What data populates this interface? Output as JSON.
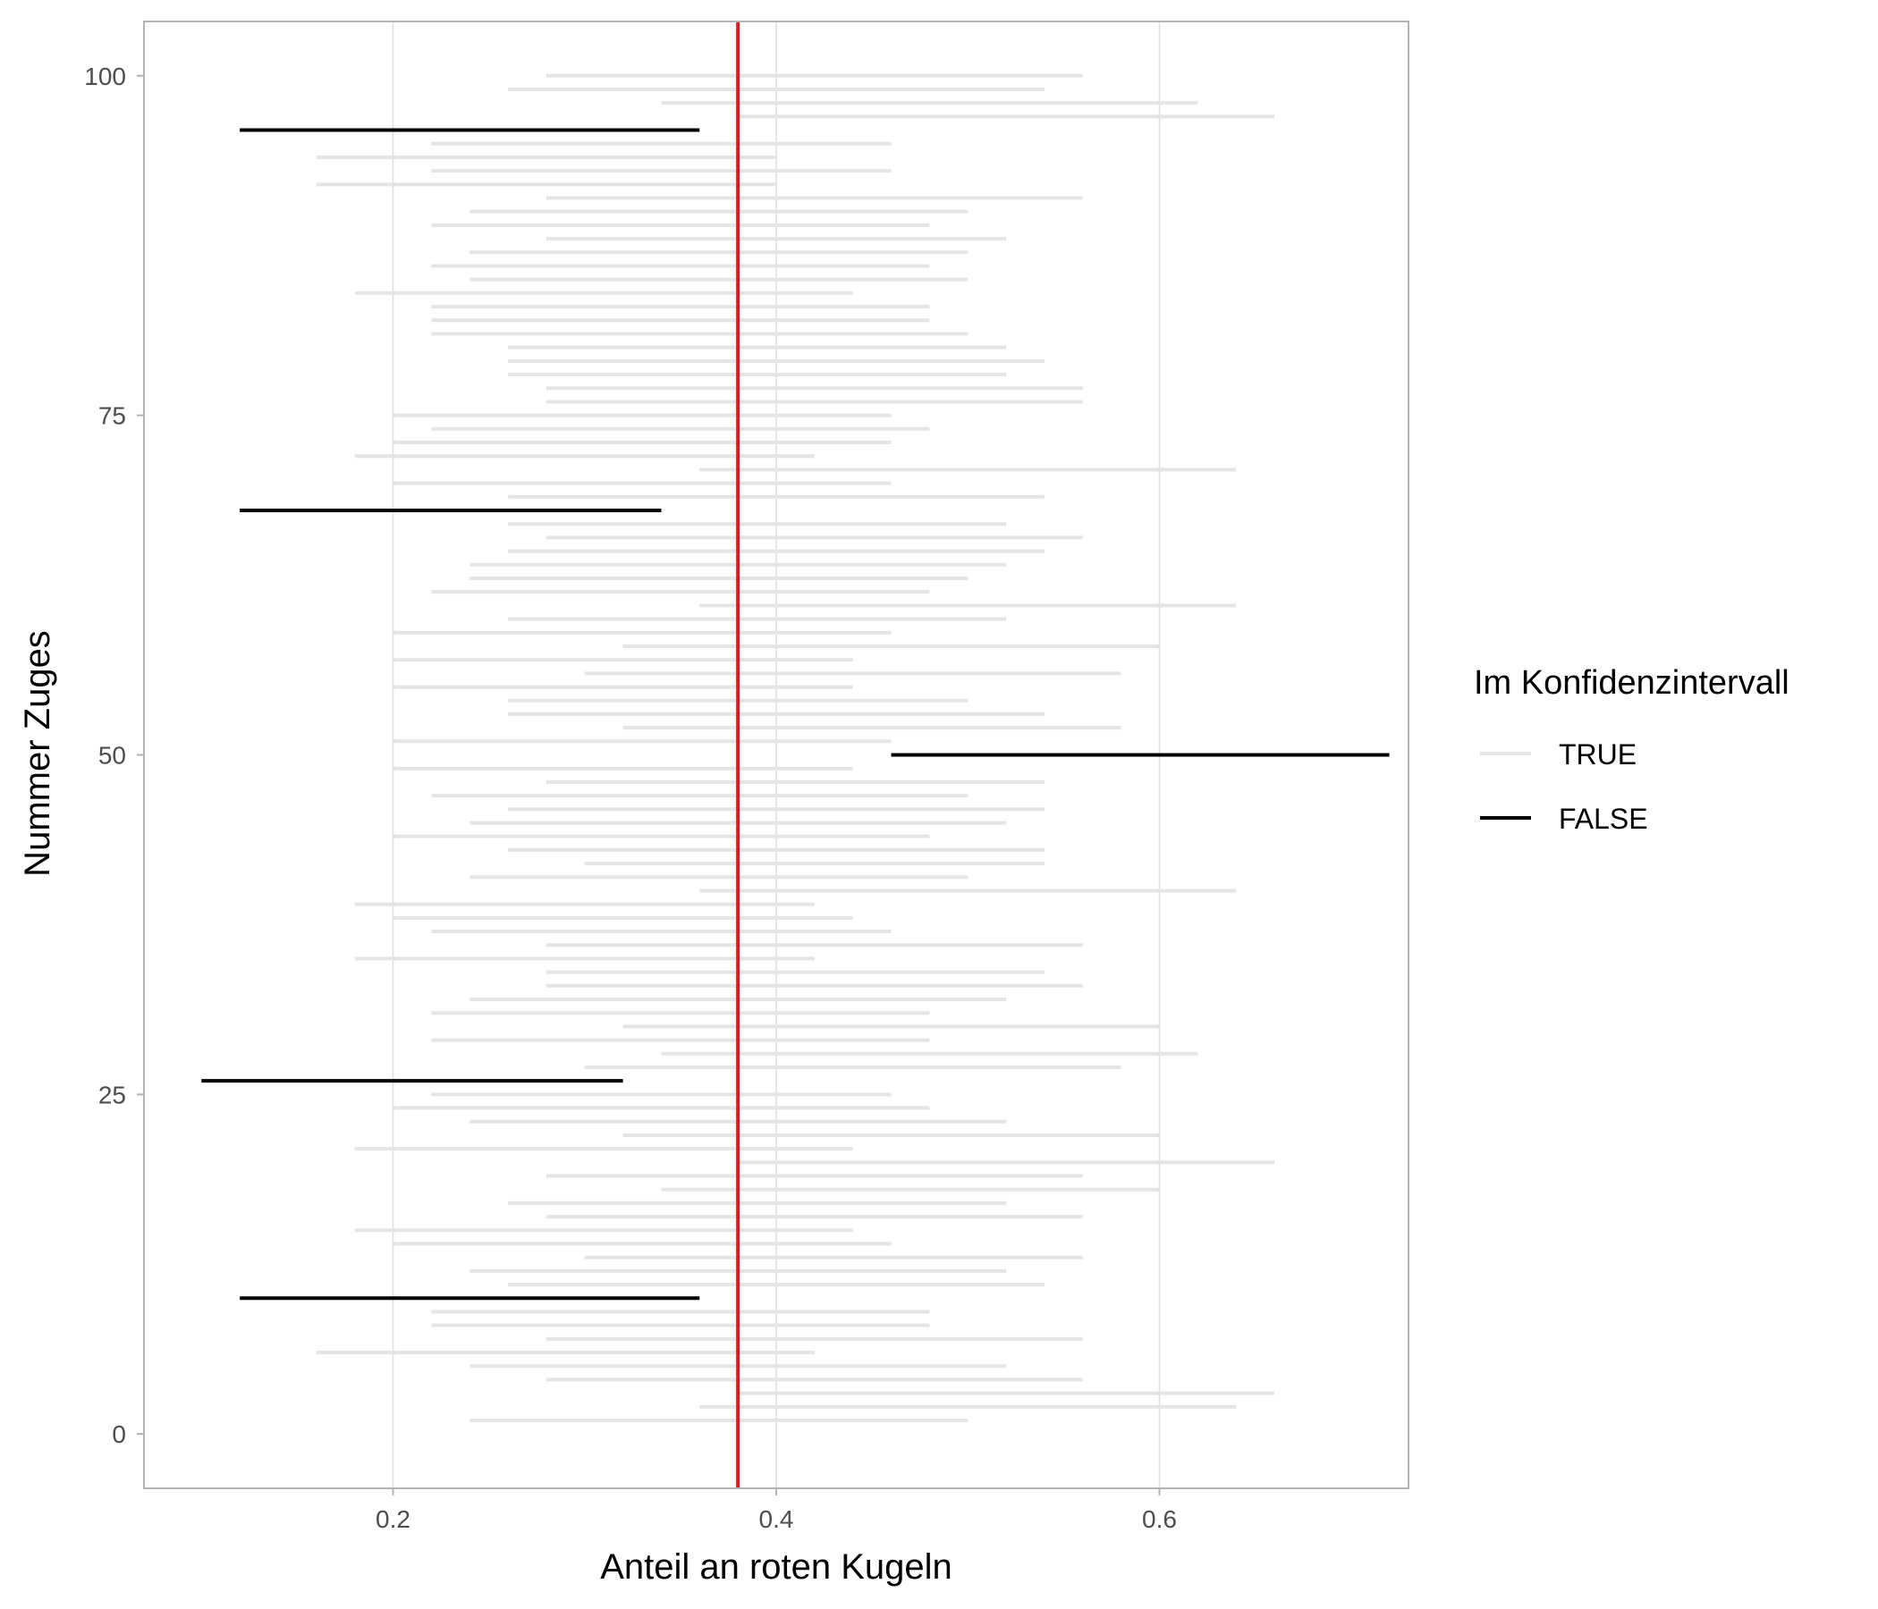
{
  "chart_data": {
    "type": "interval",
    "xlabel": "Anteil an roten Kugeln",
    "ylabel": "Nummer Zuges",
    "xlim": [
      0.07,
      0.73
    ],
    "ylim": [
      -4,
      104
    ],
    "xticks": [
      0.2,
      0.4,
      0.6
    ],
    "xtick_labels": [
      "0.2",
      "0.4",
      "0.6"
    ],
    "yticks": [
      0,
      25,
      50,
      75,
      100
    ],
    "ytick_labels": [
      "0",
      "25",
      "50",
      "75",
      "100"
    ],
    "grid": true,
    "reference_line": {
      "x": 0.38,
      "color": "#e31a1c"
    },
    "legend": {
      "title": "Im Konfidenzintervall",
      "position": "right",
      "entries": [
        {
          "label": "TRUE",
          "color": "#e4e4e4"
        },
        {
          "label": "FALSE",
          "color": "#000000"
        }
      ]
    },
    "colors": {
      "TRUE": "#e4e4e4",
      "FALSE": "#000000"
    },
    "intervals": [
      {
        "y": 1,
        "lo": 0.24,
        "hi": 0.5,
        "in_ci": "TRUE"
      },
      {
        "y": 2,
        "lo": 0.36,
        "hi": 0.64,
        "in_ci": "TRUE"
      },
      {
        "y": 3,
        "lo": 0.38,
        "hi": 0.66,
        "in_ci": "TRUE"
      },
      {
        "y": 4,
        "lo": 0.28,
        "hi": 0.56,
        "in_ci": "TRUE"
      },
      {
        "y": 5,
        "lo": 0.24,
        "hi": 0.52,
        "in_ci": "TRUE"
      },
      {
        "y": 6,
        "lo": 0.16,
        "hi": 0.42,
        "in_ci": "TRUE"
      },
      {
        "y": 7,
        "lo": 0.28,
        "hi": 0.56,
        "in_ci": "TRUE"
      },
      {
        "y": 8,
        "lo": 0.22,
        "hi": 0.48,
        "in_ci": "TRUE"
      },
      {
        "y": 9,
        "lo": 0.22,
        "hi": 0.48,
        "in_ci": "TRUE"
      },
      {
        "y": 10,
        "lo": 0.12,
        "hi": 0.36,
        "in_ci": "FALSE"
      },
      {
        "y": 11,
        "lo": 0.26,
        "hi": 0.54,
        "in_ci": "TRUE"
      },
      {
        "y": 12,
        "lo": 0.24,
        "hi": 0.52,
        "in_ci": "TRUE"
      },
      {
        "y": 13,
        "lo": 0.3,
        "hi": 0.56,
        "in_ci": "TRUE"
      },
      {
        "y": 14,
        "lo": 0.2,
        "hi": 0.46,
        "in_ci": "TRUE"
      },
      {
        "y": 15,
        "lo": 0.18,
        "hi": 0.44,
        "in_ci": "TRUE"
      },
      {
        "y": 16,
        "lo": 0.28,
        "hi": 0.56,
        "in_ci": "TRUE"
      },
      {
        "y": 17,
        "lo": 0.26,
        "hi": 0.52,
        "in_ci": "TRUE"
      },
      {
        "y": 18,
        "lo": 0.34,
        "hi": 0.6,
        "in_ci": "TRUE"
      },
      {
        "y": 19,
        "lo": 0.28,
        "hi": 0.56,
        "in_ci": "TRUE"
      },
      {
        "y": 20,
        "lo": 0.38,
        "hi": 0.66,
        "in_ci": "TRUE"
      },
      {
        "y": 21,
        "lo": 0.18,
        "hi": 0.44,
        "in_ci": "TRUE"
      },
      {
        "y": 22,
        "lo": 0.32,
        "hi": 0.6,
        "in_ci": "TRUE"
      },
      {
        "y": 23,
        "lo": 0.24,
        "hi": 0.52,
        "in_ci": "TRUE"
      },
      {
        "y": 24,
        "lo": 0.2,
        "hi": 0.48,
        "in_ci": "TRUE"
      },
      {
        "y": 25,
        "lo": 0.22,
        "hi": 0.46,
        "in_ci": "TRUE"
      },
      {
        "y": 26,
        "lo": 0.1,
        "hi": 0.32,
        "in_ci": "FALSE"
      },
      {
        "y": 27,
        "lo": 0.3,
        "hi": 0.58,
        "in_ci": "TRUE"
      },
      {
        "y": 28,
        "lo": 0.34,
        "hi": 0.62,
        "in_ci": "TRUE"
      },
      {
        "y": 29,
        "lo": 0.22,
        "hi": 0.48,
        "in_ci": "TRUE"
      },
      {
        "y": 30,
        "lo": 0.32,
        "hi": 0.6,
        "in_ci": "TRUE"
      },
      {
        "y": 31,
        "lo": 0.22,
        "hi": 0.48,
        "in_ci": "TRUE"
      },
      {
        "y": 32,
        "lo": 0.24,
        "hi": 0.52,
        "in_ci": "TRUE"
      },
      {
        "y": 33,
        "lo": 0.28,
        "hi": 0.56,
        "in_ci": "TRUE"
      },
      {
        "y": 34,
        "lo": 0.28,
        "hi": 0.54,
        "in_ci": "TRUE"
      },
      {
        "y": 35,
        "lo": 0.18,
        "hi": 0.42,
        "in_ci": "TRUE"
      },
      {
        "y": 36,
        "lo": 0.28,
        "hi": 0.56,
        "in_ci": "TRUE"
      },
      {
        "y": 37,
        "lo": 0.22,
        "hi": 0.46,
        "in_ci": "TRUE"
      },
      {
        "y": 38,
        "lo": 0.2,
        "hi": 0.44,
        "in_ci": "TRUE"
      },
      {
        "y": 39,
        "lo": 0.18,
        "hi": 0.42,
        "in_ci": "TRUE"
      },
      {
        "y": 40,
        "lo": 0.36,
        "hi": 0.64,
        "in_ci": "TRUE"
      },
      {
        "y": 41,
        "lo": 0.24,
        "hi": 0.5,
        "in_ci": "TRUE"
      },
      {
        "y": 42,
        "lo": 0.3,
        "hi": 0.54,
        "in_ci": "TRUE"
      },
      {
        "y": 43,
        "lo": 0.26,
        "hi": 0.54,
        "in_ci": "TRUE"
      },
      {
        "y": 44,
        "lo": 0.2,
        "hi": 0.48,
        "in_ci": "TRUE"
      },
      {
        "y": 45,
        "lo": 0.24,
        "hi": 0.52,
        "in_ci": "TRUE"
      },
      {
        "y": 46,
        "lo": 0.26,
        "hi": 0.54,
        "in_ci": "TRUE"
      },
      {
        "y": 47,
        "lo": 0.22,
        "hi": 0.5,
        "in_ci": "TRUE"
      },
      {
        "y": 48,
        "lo": 0.28,
        "hi": 0.54,
        "in_ci": "TRUE"
      },
      {
        "y": 49,
        "lo": 0.2,
        "hi": 0.44,
        "in_ci": "TRUE"
      },
      {
        "y": 50,
        "lo": 0.46,
        "hi": 0.72,
        "in_ci": "FALSE"
      },
      {
        "y": 51,
        "lo": 0.2,
        "hi": 0.46,
        "in_ci": "TRUE"
      },
      {
        "y": 52,
        "lo": 0.32,
        "hi": 0.58,
        "in_ci": "TRUE"
      },
      {
        "y": 53,
        "lo": 0.26,
        "hi": 0.54,
        "in_ci": "TRUE"
      },
      {
        "y": 54,
        "lo": 0.26,
        "hi": 0.5,
        "in_ci": "TRUE"
      },
      {
        "y": 55,
        "lo": 0.2,
        "hi": 0.44,
        "in_ci": "TRUE"
      },
      {
        "y": 56,
        "lo": 0.3,
        "hi": 0.58,
        "in_ci": "TRUE"
      },
      {
        "y": 57,
        "lo": 0.2,
        "hi": 0.44,
        "in_ci": "TRUE"
      },
      {
        "y": 58,
        "lo": 0.32,
        "hi": 0.6,
        "in_ci": "TRUE"
      },
      {
        "y": 59,
        "lo": 0.2,
        "hi": 0.46,
        "in_ci": "TRUE"
      },
      {
        "y": 60,
        "lo": 0.26,
        "hi": 0.52,
        "in_ci": "TRUE"
      },
      {
        "y": 61,
        "lo": 0.36,
        "hi": 0.64,
        "in_ci": "TRUE"
      },
      {
        "y": 62,
        "lo": 0.22,
        "hi": 0.48,
        "in_ci": "TRUE"
      },
      {
        "y": 63,
        "lo": 0.24,
        "hi": 0.5,
        "in_ci": "TRUE"
      },
      {
        "y": 64,
        "lo": 0.24,
        "hi": 0.52,
        "in_ci": "TRUE"
      },
      {
        "y": 65,
        "lo": 0.26,
        "hi": 0.54,
        "in_ci": "TRUE"
      },
      {
        "y": 66,
        "lo": 0.28,
        "hi": 0.56,
        "in_ci": "TRUE"
      },
      {
        "y": 67,
        "lo": 0.26,
        "hi": 0.52,
        "in_ci": "TRUE"
      },
      {
        "y": 68,
        "lo": 0.12,
        "hi": 0.34,
        "in_ci": "FALSE"
      },
      {
        "y": 69,
        "lo": 0.26,
        "hi": 0.54,
        "in_ci": "TRUE"
      },
      {
        "y": 70,
        "lo": 0.2,
        "hi": 0.46,
        "in_ci": "TRUE"
      },
      {
        "y": 71,
        "lo": 0.36,
        "hi": 0.64,
        "in_ci": "TRUE"
      },
      {
        "y": 72,
        "lo": 0.18,
        "hi": 0.42,
        "in_ci": "TRUE"
      },
      {
        "y": 73,
        "lo": 0.2,
        "hi": 0.46,
        "in_ci": "TRUE"
      },
      {
        "y": 74,
        "lo": 0.22,
        "hi": 0.48,
        "in_ci": "TRUE"
      },
      {
        "y": 75,
        "lo": 0.2,
        "hi": 0.46,
        "in_ci": "TRUE"
      },
      {
        "y": 76,
        "lo": 0.28,
        "hi": 0.56,
        "in_ci": "TRUE"
      },
      {
        "y": 77,
        "lo": 0.28,
        "hi": 0.56,
        "in_ci": "TRUE"
      },
      {
        "y": 78,
        "lo": 0.26,
        "hi": 0.52,
        "in_ci": "TRUE"
      },
      {
        "y": 79,
        "lo": 0.26,
        "hi": 0.54,
        "in_ci": "TRUE"
      },
      {
        "y": 80,
        "lo": 0.26,
        "hi": 0.52,
        "in_ci": "TRUE"
      },
      {
        "y": 81,
        "lo": 0.22,
        "hi": 0.5,
        "in_ci": "TRUE"
      },
      {
        "y": 82,
        "lo": 0.22,
        "hi": 0.48,
        "in_ci": "TRUE"
      },
      {
        "y": 83,
        "lo": 0.22,
        "hi": 0.48,
        "in_ci": "TRUE"
      },
      {
        "y": 84,
        "lo": 0.18,
        "hi": 0.44,
        "in_ci": "TRUE"
      },
      {
        "y": 85,
        "lo": 0.24,
        "hi": 0.5,
        "in_ci": "TRUE"
      },
      {
        "y": 86,
        "lo": 0.22,
        "hi": 0.48,
        "in_ci": "TRUE"
      },
      {
        "y": 87,
        "lo": 0.24,
        "hi": 0.5,
        "in_ci": "TRUE"
      },
      {
        "y": 88,
        "lo": 0.28,
        "hi": 0.52,
        "in_ci": "TRUE"
      },
      {
        "y": 89,
        "lo": 0.22,
        "hi": 0.48,
        "in_ci": "TRUE"
      },
      {
        "y": 90,
        "lo": 0.24,
        "hi": 0.5,
        "in_ci": "TRUE"
      },
      {
        "y": 91,
        "lo": 0.28,
        "hi": 0.56,
        "in_ci": "TRUE"
      },
      {
        "y": 92,
        "lo": 0.16,
        "hi": 0.4,
        "in_ci": "TRUE"
      },
      {
        "y": 93,
        "lo": 0.22,
        "hi": 0.46,
        "in_ci": "TRUE"
      },
      {
        "y": 94,
        "lo": 0.16,
        "hi": 0.4,
        "in_ci": "TRUE"
      },
      {
        "y": 95,
        "lo": 0.22,
        "hi": 0.46,
        "in_ci": "TRUE"
      },
      {
        "y": 96,
        "lo": 0.12,
        "hi": 0.36,
        "in_ci": "FALSE"
      },
      {
        "y": 97,
        "lo": 0.38,
        "hi": 0.66,
        "in_ci": "TRUE"
      },
      {
        "y": 98,
        "lo": 0.34,
        "hi": 0.62,
        "in_ci": "TRUE"
      },
      {
        "y": 99,
        "lo": 0.26,
        "hi": 0.54,
        "in_ci": "TRUE"
      },
      {
        "y": 100,
        "lo": 0.28,
        "hi": 0.56,
        "in_ci": "TRUE"
      }
    ]
  }
}
